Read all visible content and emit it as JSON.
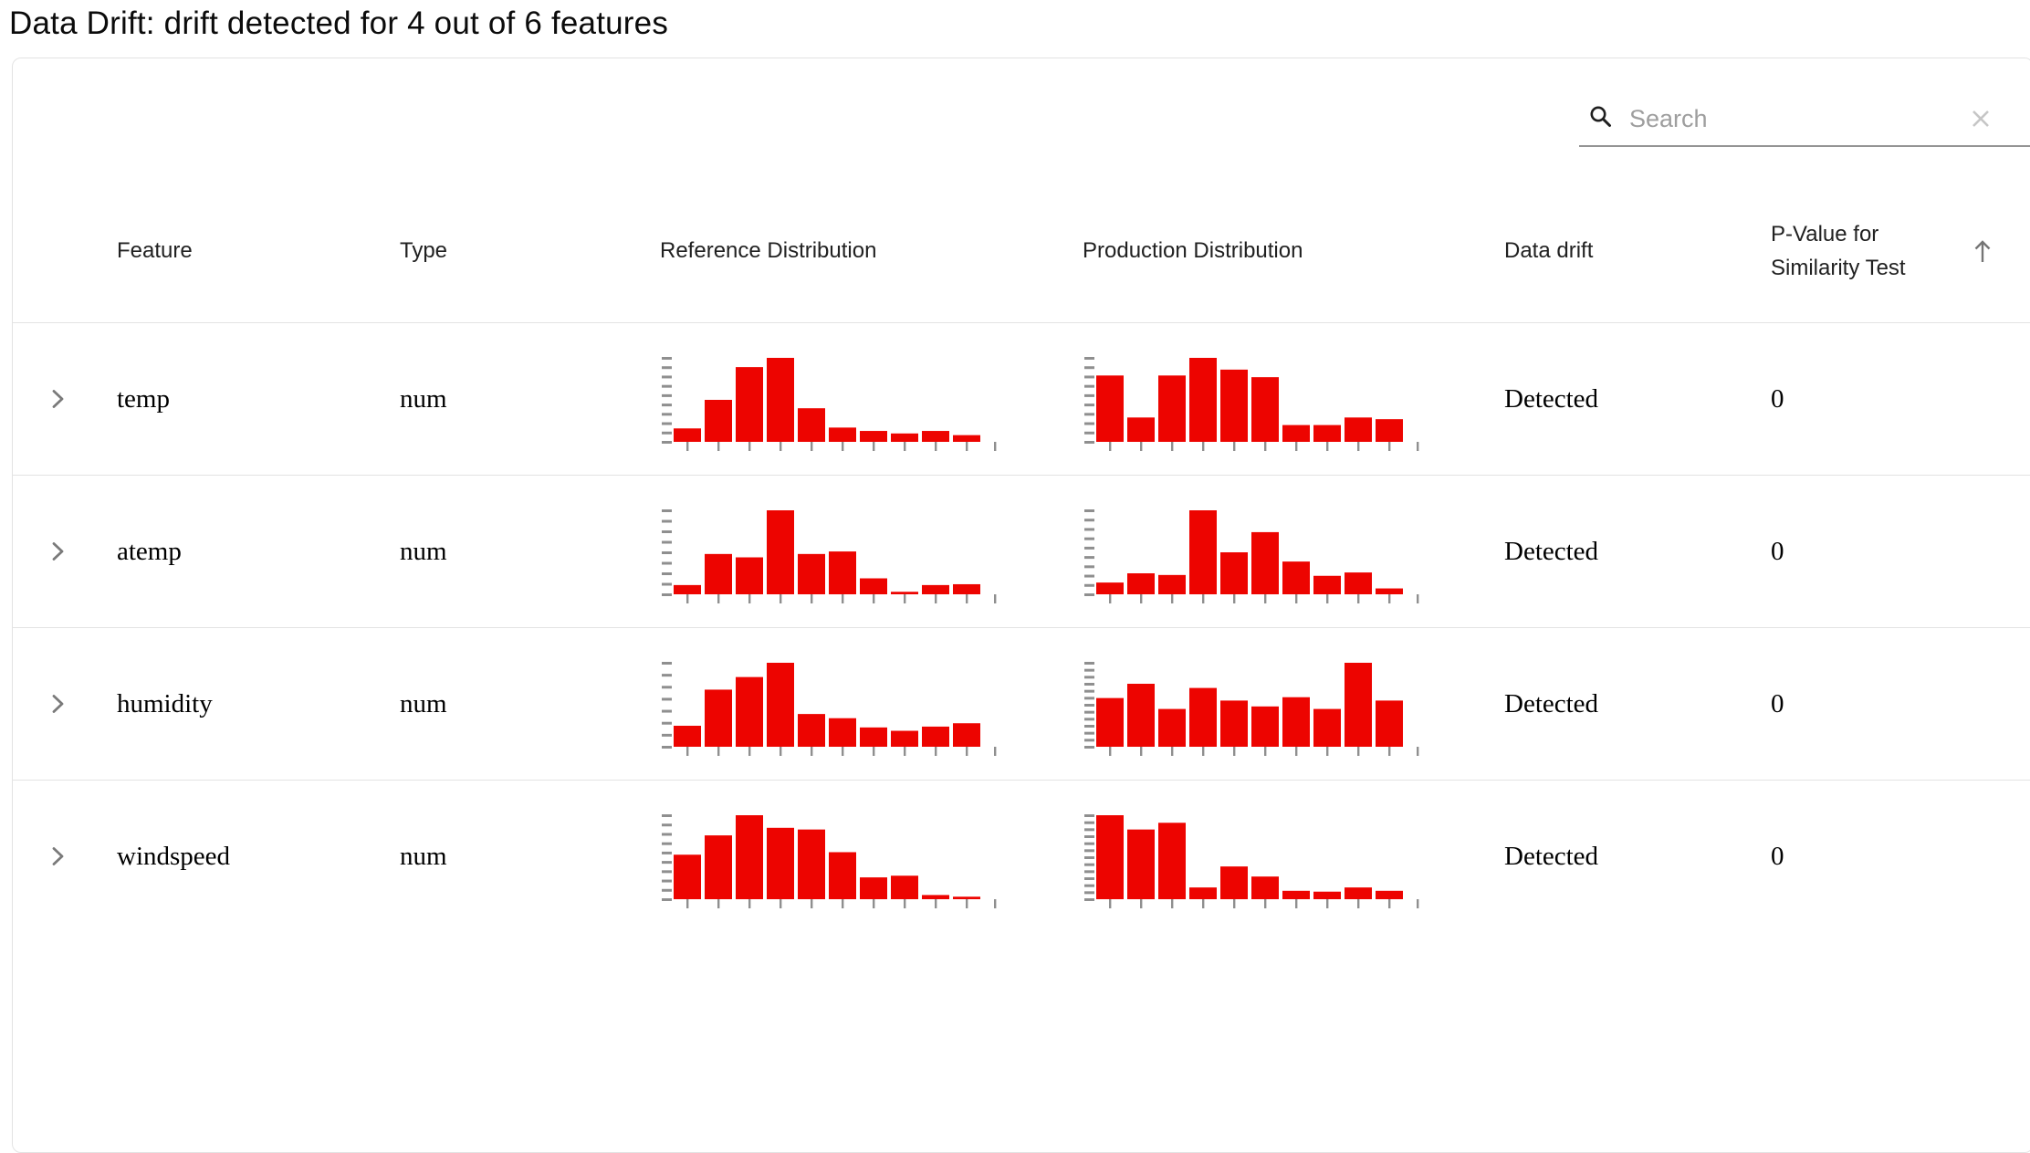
{
  "title": "Data Drift: drift detected for 4 out of 6 features",
  "search": {
    "placeholder": "Search"
  },
  "columns": {
    "feature": "Feature",
    "type": "Type",
    "reference": "Reference Distribution",
    "production": "Production Distribution",
    "drift": "Data drift",
    "p_value": "P-Value for Similarity Test"
  },
  "rows": [
    {
      "feature": "temp",
      "type": "num",
      "drift": "Detected",
      "p_value": "0",
      "reference": {
        "type": "bar",
        "values": [
          0.16,
          0.5,
          0.89,
          1.0,
          0.4,
          0.17,
          0.13,
          0.1,
          0.13,
          0.08
        ],
        "yticks": 10
      },
      "production": {
        "type": "bar",
        "values": [
          0.79,
          0.29,
          0.79,
          1.0,
          0.86,
          0.77,
          0.2,
          0.2,
          0.29,
          0.27
        ],
        "yticks": 10
      }
    },
    {
      "feature": "atemp",
      "type": "num",
      "drift": "Detected",
      "p_value": "0",
      "reference": {
        "type": "bar",
        "values": [
          0.11,
          0.48,
          0.44,
          1.0,
          0.48,
          0.51,
          0.19,
          0.03,
          0.11,
          0.12
        ],
        "yticks": 9
      },
      "production": {
        "type": "bar",
        "values": [
          0.14,
          0.25,
          0.23,
          1.0,
          0.5,
          0.74,
          0.39,
          0.22,
          0.26,
          0.07
        ],
        "yticks": 10
      }
    },
    {
      "feature": "humidity",
      "type": "num",
      "drift": "Detected",
      "p_value": "0",
      "reference": {
        "type": "bar",
        "values": [
          0.25,
          0.68,
          0.83,
          1.0,
          0.39,
          0.34,
          0.23,
          0.19,
          0.24,
          0.28
        ],
        "yticks": 8
      },
      "production": {
        "type": "bar",
        "values": [
          0.58,
          0.75,
          0.45,
          0.7,
          0.55,
          0.48,
          0.59,
          0.45,
          1.0,
          0.55
        ],
        "yticks": 13
      }
    },
    {
      "feature": "windspeed",
      "type": "num",
      "drift": "Detected",
      "p_value": "0",
      "reference": {
        "type": "bar",
        "values": [
          0.53,
          0.76,
          1.0,
          0.85,
          0.83,
          0.56,
          0.26,
          0.28,
          0.05,
          0.03
        ],
        "yticks": 10
      },
      "production": {
        "type": "bar",
        "values": [
          1.0,
          0.83,
          0.91,
          0.14,
          0.39,
          0.27,
          0.1,
          0.09,
          0.14,
          0.1
        ],
        "yticks": 13
      }
    }
  ],
  "colors": {
    "bar": "#ed0400",
    "axis": "#8f8f8f",
    "divider": "#e3e3e3",
    "chevron": "#7a7a7a",
    "sort_arrow": "#757575",
    "search_underline": "#949494",
    "placeholder": "#9e9e9e",
    "clear_icon": "#c6c6c6",
    "header_text": "#212121"
  }
}
